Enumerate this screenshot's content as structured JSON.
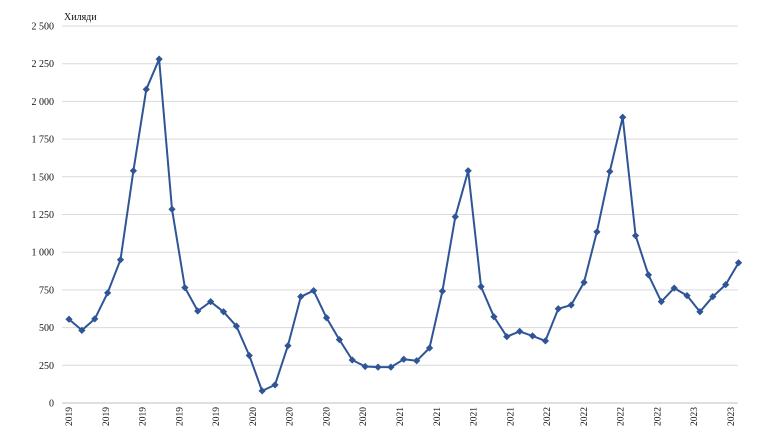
{
  "chart_data": {
    "type": "line",
    "title": "",
    "ylabel": "Хиляди",
    "ylim": [
      0,
      2500
    ],
    "yticks": [
      0,
      250,
      500,
      750,
      1000,
      1250,
      1500,
      1750,
      2000,
      2250,
      2500
    ],
    "ytick_labels": [
      "0",
      "250",
      "500",
      "750",
      "1 000",
      "1 250",
      "1 500",
      "1 750",
      "2 000",
      "2 250",
      "2 500"
    ],
    "x_tick_labels": [
      "2019",
      "2019",
      "2019",
      "2019",
      "2019",
      "2020",
      "2020",
      "2020",
      "2020",
      "2021",
      "2021",
      "2021",
      "2021",
      "2022",
      "2022",
      "2022",
      "2022",
      "2023",
      "2023"
    ],
    "grid": true,
    "color": "#2F5597",
    "series": [
      {
        "values": [
          555,
          482,
          558,
          730,
          950,
          1540,
          2080,
          2280,
          1285,
          765,
          610,
          672,
          605,
          510,
          315,
          80,
          120,
          380,
          705,
          745,
          565,
          420,
          285,
          242,
          238,
          238,
          290,
          280,
          365,
          742,
          1235,
          1540,
          772,
          572,
          440,
          475,
          445,
          412,
          625,
          650,
          800,
          1135,
          1535,
          1895,
          1110,
          850,
          672,
          762,
          712,
          605,
          705,
          785,
          930
        ]
      }
    ]
  }
}
